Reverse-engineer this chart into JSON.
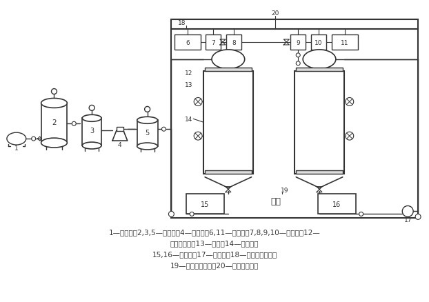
{
  "bg_color": "#ffffff",
  "line_color": "#333333",
  "caption_lines": [
    "1—压缩机；2,3,5—缓冲罐；4—配气瓶；6,11—高位槽；7,8,9,10—预热器；12—",
    "生物滴滤塔；13—视镜；14—差压计；",
    "15,16—循环槽；17—循环泵；18—入气口采样口；",
    "19—出气口采样口；20—转子流量计。"
  ],
  "figsize": [
    6.22,
    4.39
  ],
  "dpi": 100
}
